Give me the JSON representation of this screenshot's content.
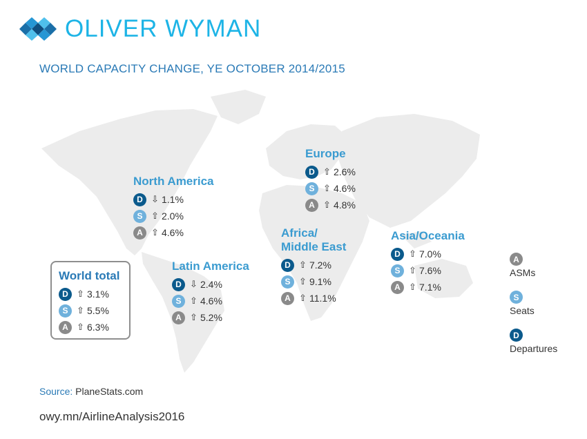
{
  "brand": {
    "name": "OLIVER WYMAN"
  },
  "title": "WORLD CAPACITY CHANGE, YE OCTOBER 2014/2015",
  "colors": {
    "departures": "#0b5a8c",
    "seats": "#6fb1dc",
    "asms": "#8a8a8a",
    "brand": "#1db4e6",
    "region_title": "#3a9bd0",
    "map": "#ececec"
  },
  "regions": {
    "north_america": {
      "name": "North America",
      "departures": {
        "letter": "D",
        "arrow": "⇩",
        "value": "1.1%"
      },
      "seats": {
        "letter": "S",
        "arrow": "⇧",
        "value": "2.0%"
      },
      "asms": {
        "letter": "A",
        "arrow": "⇧",
        "value": "4.6%"
      }
    },
    "europe": {
      "name": "Europe",
      "departures": {
        "letter": "D",
        "arrow": "⇧",
        "value": "2.6%"
      },
      "seats": {
        "letter": "S",
        "arrow": "⇧",
        "value": "4.6%"
      },
      "asms": {
        "letter": "A",
        "arrow": "⇧",
        "value": "4.8%"
      }
    },
    "latin_america": {
      "name": "Latin America",
      "departures": {
        "letter": "D",
        "arrow": "⇩",
        "value": "2.4%"
      },
      "seats": {
        "letter": "S",
        "arrow": "⇧",
        "value": "4.6%"
      },
      "asms": {
        "letter": "A",
        "arrow": "⇧",
        "value": "5.2%"
      }
    },
    "africa_me": {
      "name_line1": "Africa/",
      "name_line2": "Middle East",
      "departures": {
        "letter": "D",
        "arrow": "⇧",
        "value": "7.2%"
      },
      "seats": {
        "letter": "S",
        "arrow": "⇧",
        "value": "9.1%"
      },
      "asms": {
        "letter": "A",
        "arrow": "⇧",
        "value": "11.1%"
      }
    },
    "asia_oceania": {
      "name": "Asia/Oceania",
      "departures": {
        "letter": "D",
        "arrow": "⇧",
        "value": "7.0%"
      },
      "seats": {
        "letter": "S",
        "arrow": "⇧",
        "value": "7.6%"
      },
      "asms": {
        "letter": "A",
        "arrow": "⇧",
        "value": "7.1%"
      }
    }
  },
  "world_total": {
    "name": "World total",
    "departures": {
      "letter": "D",
      "arrow": "⇧",
      "value": "3.1%"
    },
    "seats": {
      "letter": "S",
      "arrow": "⇧",
      "value": "5.5%"
    },
    "asms": {
      "letter": "A",
      "arrow": "⇧",
      "value": "6.3%"
    }
  },
  "legend": [
    {
      "letter": "A",
      "label": "ASMs"
    },
    {
      "letter": "S",
      "label": "Seats"
    },
    {
      "letter": "D",
      "label": "Departures"
    }
  ],
  "source": {
    "label": "Source:",
    "text": "PlaneStats.com"
  },
  "url": "owy.mn/AirlineAnalysis2016"
}
